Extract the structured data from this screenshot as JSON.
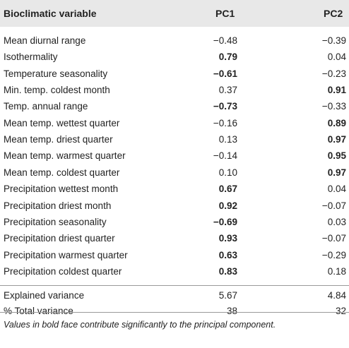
{
  "header": {
    "col_variable": "Bioclimatic variable",
    "col_pc1": "PC1",
    "col_pc2": "PC2"
  },
  "rows": [
    {
      "label": "Mean diurnal range",
      "pc1": "−0.48",
      "pc2": "−0.39",
      "pc1_bold": false,
      "pc2_bold": false
    },
    {
      "label": "Isothermality",
      "pc1": "0.79",
      "pc2": "0.04",
      "pc1_bold": true,
      "pc2_bold": false
    },
    {
      "label": "Temperature seasonality",
      "pc1": "−0.61",
      "pc2": "−0.23",
      "pc1_bold": true,
      "pc2_bold": false
    },
    {
      "label": "Min. temp. coldest month",
      "pc1": "0.37",
      "pc2": "0.91",
      "pc1_bold": false,
      "pc2_bold": true
    },
    {
      "label": "Temp. annual range",
      "pc1": "−0.73",
      "pc2": "−0.33",
      "pc1_bold": true,
      "pc2_bold": false
    },
    {
      "label": "Mean temp. wettest quarter",
      "pc1": "−0.16",
      "pc2": "0.89",
      "pc1_bold": false,
      "pc2_bold": true
    },
    {
      "label": "Mean temp. driest quarter",
      "pc1": "0.13",
      "pc2": "0.97",
      "pc1_bold": false,
      "pc2_bold": true
    },
    {
      "label": "Mean temp. warmest quarter",
      "pc1": "−0.14",
      "pc2": "0.95",
      "pc1_bold": false,
      "pc2_bold": true
    },
    {
      "label": "Mean temp. coldest quarter",
      "pc1": "0.10",
      "pc2": "0.97",
      "pc1_bold": false,
      "pc2_bold": true
    },
    {
      "label": "Precipitation wettest month",
      "pc1": "0.67",
      "pc2": "0.04",
      "pc1_bold": true,
      "pc2_bold": false
    },
    {
      "label": "Precipitation driest month",
      "pc1": "0.92",
      "pc2": "−0.07",
      "pc1_bold": true,
      "pc2_bold": false
    },
    {
      "label": "Precipitation seasonality",
      "pc1": "−0.69",
      "pc2": "0.03",
      "pc1_bold": true,
      "pc2_bold": false
    },
    {
      "label": "Precipitation driest quarter",
      "pc1": "0.93",
      "pc2": "−0.07",
      "pc1_bold": true,
      "pc2_bold": false
    },
    {
      "label": "Precipitation warmest quarter",
      "pc1": "0.63",
      "pc2": "−0.29",
      "pc1_bold": true,
      "pc2_bold": false
    },
    {
      "label": "Precipitation coldest quarter",
      "pc1": "0.83",
      "pc2": "0.18",
      "pc1_bold": true,
      "pc2_bold": false
    }
  ],
  "summary": [
    {
      "label": "Explained variance",
      "pc1": "5.67",
      "pc2": "4.84"
    },
    {
      "label": "% Total variance",
      "pc1": "38",
      "pc2": "32"
    }
  ],
  "footnote": "Values in bold face contribute significantly to the principal component.",
  "colors": {
    "header_background": "#e8e8e8",
    "rule": "#9a9a9a",
    "text": "#222222"
  }
}
